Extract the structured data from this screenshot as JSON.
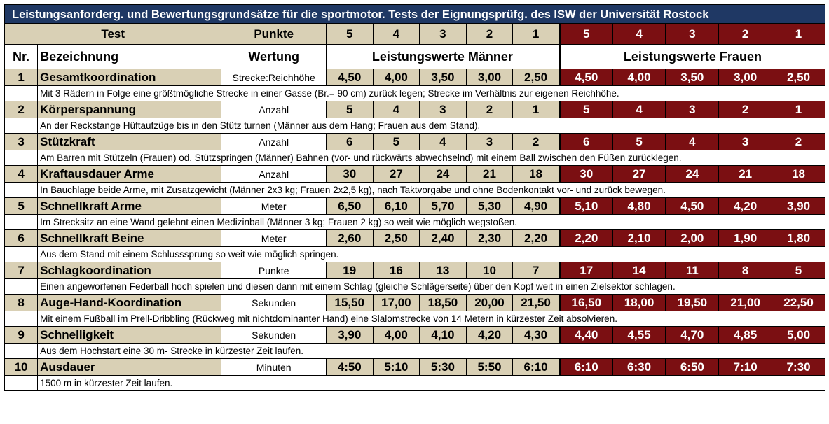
{
  "title": "Leistungsanforderg. und Bewertungsgrundsätze für die sportmotor. Tests der Eignungsprüfg. des ISW der Universität Rostock",
  "header": {
    "test": "Test",
    "punkte": "Punkte",
    "points": [
      "5",
      "4",
      "3",
      "2",
      "1"
    ],
    "nr": "Nr.",
    "bezeichnung": "Bezeichnung",
    "wertung": "Wertung",
    "men_label": "Leistungswerte Männer",
    "women_label": "Leistungswerte Frauen"
  },
  "colors": {
    "title_bg": "#1f3864",
    "men_bg": "#d9d0b5",
    "women_bg": "#7b0f12"
  },
  "rows": [
    {
      "nr": "1",
      "name": "Gesamtkoordination",
      "wertung": "Strecke:Reichhöhe",
      "men": [
        "4,50",
        "4,00",
        "3,50",
        "3,00",
        "2,50"
      ],
      "women": [
        "4,50",
        "4,00",
        "3,50",
        "3,00",
        "2,50"
      ],
      "desc": "Mit 3 Rädern in Folge eine größtmögliche Strecke in einer Gasse (Br.= 90 cm) zurück legen; Strecke im Verhältnis zur eigenen Reichhöhe."
    },
    {
      "nr": "2",
      "name": "Körperspannung",
      "wertung": "Anzahl",
      "men": [
        "5",
        "4",
        "3",
        "2",
        "1"
      ],
      "women": [
        "5",
        "4",
        "3",
        "2",
        "1"
      ],
      "desc": "An der Reckstange Hüftaufzüge bis in den Stütz turnen (Männer aus dem Hang; Frauen aus dem Stand)."
    },
    {
      "nr": "3",
      "name": "Stützkraft",
      "wertung": "Anzahl",
      "men": [
        "6",
        "5",
        "4",
        "3",
        "2"
      ],
      "women": [
        "6",
        "5",
        "4",
        "3",
        "2"
      ],
      "desc": "Am Barren mit Stützeln (Frauen) od. Stützspringen (Männer) Bahnen (vor- und rückwärts abwechselnd) mit einem Ball zwischen den Füßen zurücklegen."
    },
    {
      "nr": "4",
      "name": "Kraftausdauer Arme",
      "wertung": "Anzahl",
      "men": [
        "30",
        "27",
        "24",
        "21",
        "18"
      ],
      "women": [
        "30",
        "27",
        "24",
        "21",
        "18"
      ],
      "desc": "In Bauchlage beide Arme, mit Zusatzgewicht (Männer 2x3 kg; Frauen 2x2,5 kg), nach Taktvorgabe und ohne Bodenkontakt vor- und zurück bewegen."
    },
    {
      "nr": "5",
      "name": "Schnellkraft Arme",
      "wertung": "Meter",
      "men": [
        "6,50",
        "6,10",
        "5,70",
        "5,30",
        "4,90"
      ],
      "women": [
        "5,10",
        "4,80",
        "4,50",
        "4,20",
        "3,90"
      ],
      "desc": "Im Strecksitz an eine Wand gelehnt einen Medizinball (Männer 3 kg; Frauen 2 kg) so weit wie möglich wegstoßen."
    },
    {
      "nr": "6",
      "name": "Schnellkraft Beine",
      "wertung": "Meter",
      "men": [
        "2,60",
        "2,50",
        "2,40",
        "2,30",
        "2,20"
      ],
      "women": [
        "2,20",
        "2,10",
        "2,00",
        "1,90",
        "1,80"
      ],
      "desc": "Aus dem Stand mit einem Schlusssprung so weit wie möglich springen."
    },
    {
      "nr": "7",
      "name": "Schlagkoordination",
      "wertung": "Punkte",
      "men": [
        "19",
        "16",
        "13",
        "10",
        "7"
      ],
      "women": [
        "17",
        "14",
        "11",
        "8",
        "5"
      ],
      "desc": "Einen angeworfenen Federball hoch spielen und diesen dann mit einem Schlag (gleiche Schlägerseite) über den Kopf weit in einen Zielsektor schlagen."
    },
    {
      "nr": "8",
      "name": "Auge-Hand-Koordination",
      "wertung": "Sekunden",
      "men": [
        "15,50",
        "17,00",
        "18,50",
        "20,00",
        "21,50"
      ],
      "women": [
        "16,50",
        "18,00",
        "19,50",
        "21,00",
        "22,50"
      ],
      "desc": "Mit einem Fußball im Prell-Dribbling (Rückweg mit nichtdominanter Hand) eine Slalomstrecke von 14 Metern in kürzester Zeit absolvieren."
    },
    {
      "nr": "9",
      "name": "Schnelligkeit",
      "wertung": "Sekunden",
      "men": [
        "3,90",
        "4,00",
        "4,10",
        "4,20",
        "4,30"
      ],
      "women": [
        "4,40",
        "4,55",
        "4,70",
        "4,85",
        "5,00"
      ],
      "desc": "Aus dem Hochstart eine 30 m- Strecke in kürzester Zeit laufen."
    },
    {
      "nr": "10",
      "name": "Ausdauer",
      "wertung": "Minuten",
      "men": [
        "4:50",
        "5:10",
        "5:30",
        "5:50",
        "6:10"
      ],
      "women": [
        "6:10",
        "6:30",
        "6:50",
        "7:10",
        "7:30"
      ],
      "desc": "1500 m in kürzester Zeit laufen."
    }
  ]
}
